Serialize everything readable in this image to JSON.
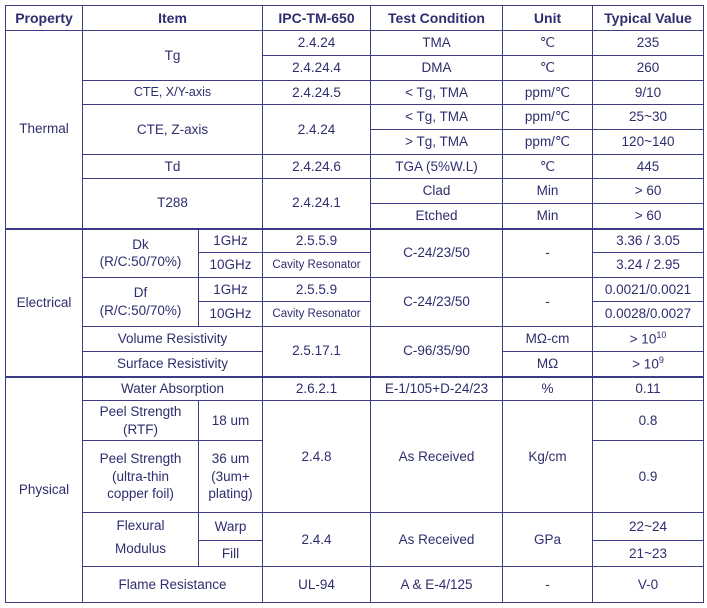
{
  "headers": [
    "Property",
    "Item",
    "IPC-TM-650",
    "Test Condition",
    "Unit",
    "Typical Value"
  ],
  "thermal": {
    "property": "Thermal",
    "tg": {
      "item": "Tg",
      "ipc": [
        "2.4.24",
        "2.4.24.4"
      ],
      "test": [
        "TMA",
        "DMA"
      ],
      "unit": [
        "℃",
        "℃"
      ],
      "value": [
        "235",
        "260"
      ]
    },
    "cte_xy": {
      "item": "CTE, X/Y-axis",
      "ipc": "2.4.24.5",
      "test": "< Tg, TMA",
      "unit": "ppm/℃",
      "value": "9/10"
    },
    "cte_z": {
      "item": "CTE, Z-axis",
      "ipc": "2.4.24",
      "test": [
        "< Tg, TMA",
        "> Tg, TMA"
      ],
      "unit": [
        "ppm/℃",
        "ppm/℃"
      ],
      "value": [
        "25~30",
        "120~140"
      ]
    },
    "td": {
      "item": "Td",
      "ipc": "2.4.24.6",
      "test": "TGA (5%W.L)",
      "unit": "℃",
      "value": "445"
    },
    "t288": {
      "item": "T288",
      "ipc": "2.4.24.1",
      "test": [
        "Clad",
        "Etched"
      ],
      "unit": [
        "Min",
        "Min"
      ],
      "value": [
        "> 60",
        "> 60"
      ]
    }
  },
  "electrical": {
    "property": "Electrical",
    "dk": {
      "item": "Dk",
      "sub": "(R/C:50/70%)",
      "freq": [
        "1GHz",
        "10GHz"
      ],
      "ipc": [
        "2.5.5.9",
        "Cavity Resonator"
      ],
      "test": "C-24/23/50",
      "unit": "-",
      "value": [
        "3.36 / 3.05",
        "3.24 / 2.95"
      ]
    },
    "df": {
      "item": "Df",
      "sub": "(R/C:50/70%)",
      "freq": [
        "1GHz",
        "10GHz"
      ],
      "ipc": [
        "2.5.5.9",
        "Cavity Resonator"
      ],
      "test": "C-24/23/50",
      "unit": "-",
      "value": [
        "0.0021/0.0021",
        "0.0028/0.0027"
      ]
    },
    "volume": {
      "item": "Volume Resistivity",
      "unit": "MΩ-cm",
      "value": "> 10",
      "exp": "10"
    },
    "surface": {
      "item": "Surface Resistivity",
      "unit": "MΩ",
      "value": "> 10",
      "exp": "9"
    },
    "resistivity_ipc": "2.5.17.1",
    "resistivity_test": "C-96/35/90"
  },
  "physical": {
    "property": "Physical",
    "water": {
      "item": "Water Absorption",
      "ipc": "2.6.2.1",
      "test": "E-1/105+D-24/23",
      "unit": "%",
      "value": "0.11"
    },
    "peel_rtf": {
      "item": [
        "Peel Strength",
        "(RTF)"
      ],
      "sub": "18 um",
      "value": "0.8"
    },
    "peel_ultra": {
      "item": [
        "Peel Strength",
        "(ultra-thin",
        "copper foil)"
      ],
      "sub": [
        "36 um",
        "(3um+",
        "plating)"
      ],
      "value": "0.9"
    },
    "peel_ipc": "2.4.8",
    "peel_test": "As Received",
    "peel_unit": "Kg/cm",
    "flexural": {
      "item": [
        "Flexural",
        "Modulus"
      ],
      "sub": [
        "Warp",
        "Fill"
      ],
      "ipc": "2.4.4",
      "test": "As Received",
      "unit": "GPa",
      "value": [
        "22~24",
        "21~23"
      ]
    },
    "flame": {
      "item": "Flame Resistance",
      "ipc": "UL-94",
      "test": "A & E-4/125",
      "unit": "-",
      "value": "V-0"
    }
  }
}
